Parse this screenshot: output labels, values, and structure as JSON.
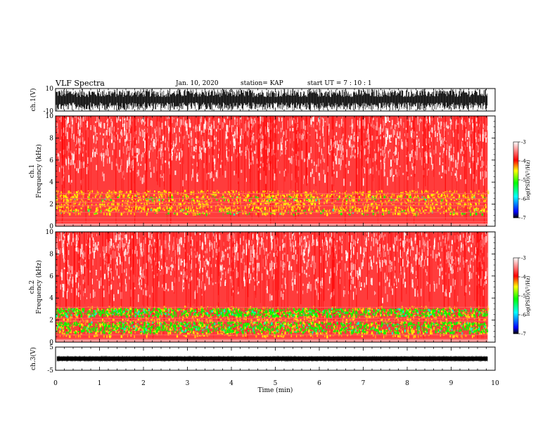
{
  "header": {
    "title": "VLF Spectra",
    "date": "Jan. 10, 2020",
    "station": "station= KAP",
    "start": "start  UT =   7 : 10 : 1"
  },
  "chart_data": [
    {
      "name": "ch1-waveform",
      "type": "line",
      "ylabel": "ch.1(V)",
      "ylim": [
        -10,
        10
      ],
      "yticks": [
        "10",
        "-10"
      ],
      "xlim": [
        0,
        10
      ],
      "x_data_end": 9.83
    },
    {
      "name": "ch1-spectrogram",
      "type": "heatmap",
      "ylabel": "ch.1\nFrequency (kHz)",
      "ylim": [
        0,
        10
      ],
      "yticks": [
        "0",
        "2",
        "4",
        "6",
        "8",
        "10"
      ],
      "xlim": [
        0,
        10
      ],
      "colorbar": {
        "label": "log(PSD)(V²/Hz)",
        "range": [
          -7,
          -3
        ],
        "ticks": [
          "-3",
          "-4",
          "-5",
          "-6",
          "-7"
        ]
      }
    },
    {
      "name": "ch2-spectrogram",
      "type": "heatmap",
      "ylabel": "ch.2\nFrequency (kHz)",
      "ylim": [
        0,
        10
      ],
      "yticks": [
        "0",
        "2",
        "4",
        "6",
        "8",
        "10"
      ],
      "xlim": [
        0,
        10
      ],
      "colorbar": {
        "label": "log(PSD)(V²/Hz)",
        "range": [
          -7,
          -3
        ],
        "ticks": [
          "-3",
          "-4",
          "-5",
          "-6",
          "-7"
        ]
      }
    },
    {
      "name": "ch3-waveform",
      "type": "line",
      "ylabel": "ch.3(V)",
      "ylim": [
        -5,
        5
      ],
      "yticks": [
        "5",
        "-5"
      ],
      "xlim": [
        0,
        10
      ],
      "x_data_end": 9.83
    }
  ],
  "xaxis": {
    "label": "Time (min)",
    "ticks": [
      "0",
      "1",
      "2",
      "3",
      "4",
      "5",
      "6",
      "7",
      "8",
      "9",
      "10"
    ]
  },
  "colors": {
    "high": "#ff0000",
    "mid": "#ffff00",
    "low": "#00ff00",
    "lower": "#00ffff",
    "lowest": "#0000ff"
  }
}
